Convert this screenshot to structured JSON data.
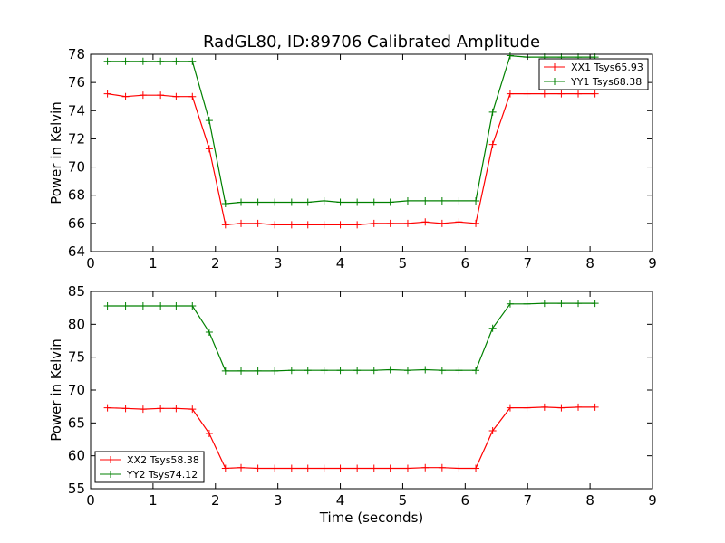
{
  "chart_data": [
    {
      "type": "line",
      "title": "RadGL80, ID:89706 Calibrated Amplitude",
      "ylabel": "Power in Kelvin",
      "xlabel": "",
      "xlim": [
        0,
        9
      ],
      "ylim": [
        64,
        78
      ],
      "xticks": [
        "0",
        "1",
        "2",
        "3",
        "4",
        "5",
        "6",
        "7",
        "8",
        "9"
      ],
      "yticks": [
        "64",
        "66",
        "68",
        "70",
        "72",
        "74",
        "76",
        "78"
      ],
      "legend_position": "top-right",
      "x": [
        0.27,
        0.56,
        0.84,
        1.12,
        1.37,
        1.63,
        1.9,
        2.16,
        2.41,
        2.68,
        2.95,
        3.22,
        3.48,
        3.74,
        4.0,
        4.27,
        4.54,
        4.8,
        5.08,
        5.36,
        5.63,
        5.9,
        6.17,
        6.44,
        6.72,
        6.99,
        7.27,
        7.54,
        7.81,
        8.08
      ],
      "series": [
        {
          "name": "XX1 Tsys65.93",
          "color": "#ff0000",
          "values": [
            75.2,
            75.0,
            75.1,
            75.1,
            75.0,
            75.0,
            71.3,
            65.9,
            66.0,
            66.0,
            65.9,
            65.9,
            65.9,
            65.9,
            65.9,
            65.9,
            66.0,
            66.0,
            66.0,
            66.1,
            66.0,
            66.1,
            66.0,
            71.6,
            75.2,
            75.2,
            75.2,
            75.2,
            75.2,
            75.2
          ]
        },
        {
          "name": "YY1 Tsys68.38",
          "color": "#008000",
          "values": [
            77.5,
            77.5,
            77.5,
            77.5,
            77.5,
            77.5,
            73.3,
            67.4,
            67.5,
            67.5,
            67.5,
            67.5,
            67.5,
            67.6,
            67.5,
            67.5,
            67.5,
            67.5,
            67.6,
            67.6,
            67.6,
            67.6,
            67.6,
            73.9,
            77.9,
            77.8,
            77.8,
            77.8,
            77.8,
            77.8
          ]
        }
      ]
    },
    {
      "type": "line",
      "title": "",
      "ylabel": "Power in Kelvin",
      "xlabel": "Time (seconds)",
      "xlim": [
        0,
        9
      ],
      "ylim": [
        55,
        85
      ],
      "xticks": [
        "0",
        "1",
        "2",
        "3",
        "4",
        "5",
        "6",
        "7",
        "8",
        "9"
      ],
      "yticks": [
        "55",
        "60",
        "65",
        "70",
        "75",
        "80",
        "85"
      ],
      "legend_position": "bottom-left",
      "x": [
        0.27,
        0.56,
        0.84,
        1.12,
        1.37,
        1.63,
        1.9,
        2.16,
        2.41,
        2.68,
        2.95,
        3.22,
        3.48,
        3.74,
        4.0,
        4.27,
        4.54,
        4.8,
        5.08,
        5.36,
        5.63,
        5.9,
        6.17,
        6.44,
        6.72,
        6.99,
        7.27,
        7.54,
        7.81,
        8.08
      ],
      "series": [
        {
          "name": "XX2 Tsys58.38",
          "color": "#ff0000",
          "values": [
            67.3,
            67.2,
            67.1,
            67.2,
            67.2,
            67.1,
            63.4,
            58.1,
            58.2,
            58.1,
            58.1,
            58.1,
            58.1,
            58.1,
            58.1,
            58.1,
            58.1,
            58.1,
            58.1,
            58.2,
            58.2,
            58.1,
            58.1,
            63.8,
            67.3,
            67.3,
            67.4,
            67.3,
            67.4,
            67.4
          ]
        },
        {
          "name": "YY2 Tsys74.12",
          "color": "#008000",
          "values": [
            82.8,
            82.8,
            82.8,
            82.8,
            82.8,
            82.8,
            78.8,
            72.9,
            72.9,
            72.9,
            72.9,
            73.0,
            73.0,
            73.0,
            73.0,
            73.0,
            73.0,
            73.1,
            73.0,
            73.1,
            73.0,
            73.0,
            73.0,
            79.4,
            83.1,
            83.1,
            83.2,
            83.2,
            83.2,
            83.2
          ]
        }
      ]
    }
  ]
}
